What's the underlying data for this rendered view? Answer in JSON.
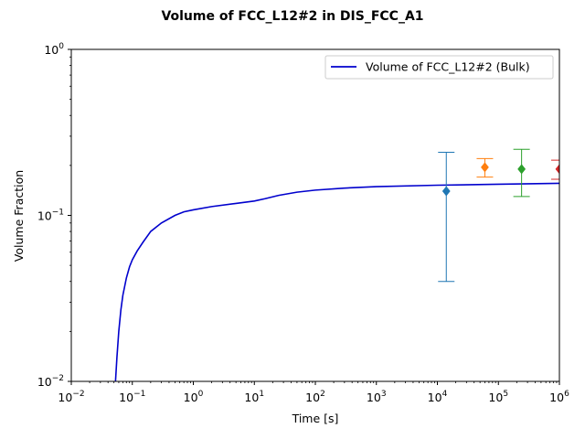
{
  "chart_data": {
    "type": "line",
    "title": "Volume of FCC_L12#2 in DIS_FCC_A1",
    "xlabel": "Time [s]",
    "ylabel": "Volume Fraction",
    "xscale": "log",
    "yscale": "log",
    "xlim": [
      0.01,
      1000000
    ],
    "ylim": [
      0.01,
      1
    ],
    "x_ticks": [
      {
        "base": "10",
        "exp": "−2",
        "value": 0.01
      },
      {
        "base": "10",
        "exp": "−1",
        "value": 0.1
      },
      {
        "base": "10",
        "exp": "0",
        "value": 1
      },
      {
        "base": "10",
        "exp": "1",
        "value": 10
      },
      {
        "base": "10",
        "exp": "2",
        "value": 100
      },
      {
        "base": "10",
        "exp": "3",
        "value": 1000
      },
      {
        "base": "10",
        "exp": "4",
        "value": 10000
      },
      {
        "base": "10",
        "exp": "5",
        "value": 100000
      },
      {
        "base": "10",
        "exp": "6",
        "value": 1000000
      }
    ],
    "y_ticks": [
      {
        "base": "10",
        "exp": "−2",
        "value": 0.01
      },
      {
        "base": "10",
        "exp": "−1",
        "value": 0.1
      },
      {
        "base": "10",
        "exp": "0",
        "value": 1
      }
    ],
    "grid": false,
    "legend": {
      "placement": "top-right",
      "entries": [
        "Volume of FCC_L12#2 (Bulk)"
      ]
    },
    "series": [
      {
        "name": "Volume of FCC_L12#2 (Bulk)",
        "color": "#0000cd",
        "points": [
          [
            0.053,
            0.01
          ],
          [
            0.056,
            0.014
          ],
          [
            0.06,
            0.02
          ],
          [
            0.065,
            0.027
          ],
          [
            0.07,
            0.033
          ],
          [
            0.08,
            0.042
          ],
          [
            0.09,
            0.049
          ],
          [
            0.1,
            0.054
          ],
          [
            0.12,
            0.061
          ],
          [
            0.15,
            0.069
          ],
          [
            0.2,
            0.08
          ],
          [
            0.3,
            0.09
          ],
          [
            0.5,
            0.1
          ],
          [
            0.7,
            0.105
          ],
          [
            1,
            0.108
          ],
          [
            2,
            0.113
          ],
          [
            5,
            0.118
          ],
          [
            10,
            0.122
          ],
          [
            15,
            0.126
          ],
          [
            25,
            0.132
          ],
          [
            50,
            0.138
          ],
          [
            100,
            0.142
          ],
          [
            300,
            0.146
          ],
          [
            1000,
            0.149
          ],
          [
            10000,
            0.152
          ],
          [
            100000,
            0.154
          ],
          [
            1000000,
            0.156
          ]
        ]
      }
    ],
    "experimental_points": [
      {
        "x": 14000,
        "y": 0.14,
        "ylow": 0.04,
        "yhigh": 0.24,
        "color": "#1f77b4"
      },
      {
        "x": 60000,
        "y": 0.195,
        "ylow": 0.17,
        "yhigh": 0.22,
        "color": "#ff7f0e"
      },
      {
        "x": 240000,
        "y": 0.19,
        "ylow": 0.13,
        "yhigh": 0.25,
        "color": "#2ca02c"
      },
      {
        "x": 1000000,
        "y": 0.19,
        "ylow": 0.165,
        "yhigh": 0.215,
        "color": "#d62728"
      }
    ]
  }
}
